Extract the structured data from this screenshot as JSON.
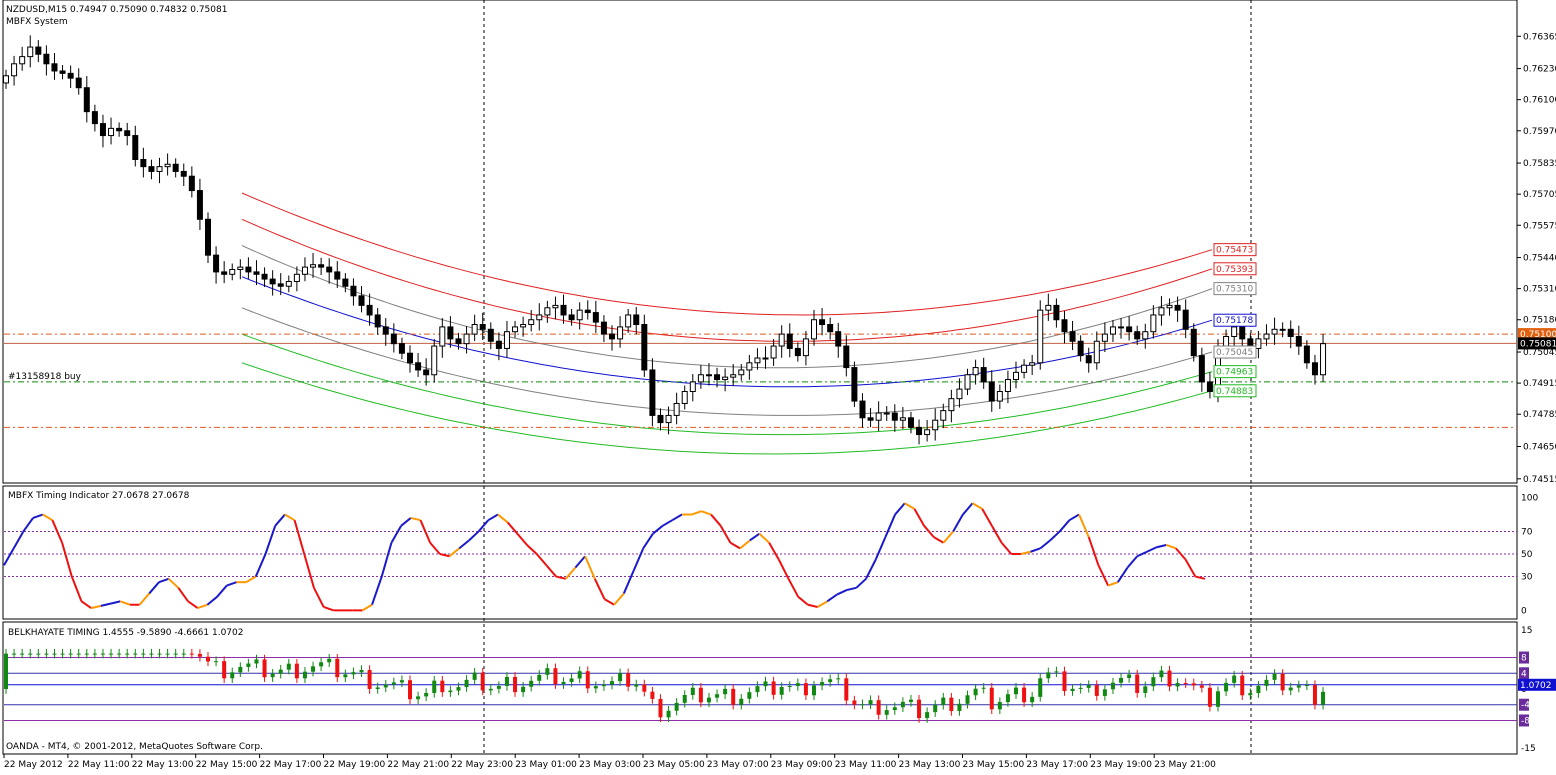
{
  "header": {
    "symbol_line": "NZDUSD,M15  0.74947 0.75090 0.74832 0.75081",
    "indicator_name": "MBFX System"
  },
  "trade_label": "#13158918 buy",
  "footer": "OANDA - MT4, © 2001-2012, MetaQuotes Software Corp.",
  "colors": {
    "bull_fill": "#ffffff",
    "bear_fill": "#000000",
    "band_red": "#e02020",
    "band_gray": "#808080",
    "band_blue": "#1010d0",
    "band_green": "#22bb22",
    "timing_up": "#1a1acc",
    "timing_down": "#ee1111",
    "timing_turn": "#ff9900",
    "hist_pos": "#118811",
    "hist_neg": "#ee1111",
    "level_lines": "#8a2fa8"
  },
  "chart_data": [
    {
      "type": "candlestick",
      "title": "NZDUSD,M15",
      "price_axis_ticks": [
        "0.76365",
        "0.76230",
        "0.76100",
        "0.75970",
        "0.75835",
        "0.75705",
        "0.75575",
        "0.75440",
        "0.75310",
        "0.75180",
        "0.75045",
        "0.74915",
        "0.74785",
        "0.74650",
        "0.74515"
      ],
      "ylim": [
        0.7451,
        0.765
      ],
      "close_series": [
        0.762,
        0.7625,
        0.7628,
        0.7632,
        0.7629,
        0.7625,
        0.7622,
        0.7621,
        0.7619,
        0.7615,
        0.7605,
        0.76,
        0.7595,
        0.7598,
        0.7597,
        0.7595,
        0.7585,
        0.7582,
        0.758,
        0.7582,
        0.7583,
        0.758,
        0.7578,
        0.7572,
        0.756,
        0.7545,
        0.7538,
        0.7537,
        0.7539,
        0.754,
        0.7538,
        0.7537,
        0.7535,
        0.7533,
        0.7532,
        0.7534,
        0.7537,
        0.754,
        0.7541,
        0.754,
        0.7538,
        0.7535,
        0.7532,
        0.7528,
        0.7524,
        0.752,
        0.7515,
        0.7512,
        0.7508,
        0.7504,
        0.75,
        0.7497,
        0.7495,
        0.7507,
        0.7515,
        0.751,
        0.7508,
        0.7512,
        0.7516,
        0.7514,
        0.7509,
        0.7506,
        0.7513,
        0.7515,
        0.7516,
        0.7518,
        0.752,
        0.7523,
        0.7524,
        0.752,
        0.7518,
        0.7522,
        0.7521,
        0.7517,
        0.7512,
        0.751,
        0.7515,
        0.752,
        0.7516,
        0.7497,
        0.7478,
        0.7475,
        0.7478,
        0.7483,
        0.7488,
        0.7492,
        0.7495,
        0.7495,
        0.7493,
        0.7494,
        0.7495,
        0.7497,
        0.75,
        0.7502,
        0.7502,
        0.7507,
        0.7512,
        0.7506,
        0.7503,
        0.751,
        0.7518,
        0.7516,
        0.7513,
        0.7507,
        0.7498,
        0.7484,
        0.7477,
        0.7476,
        0.7479,
        0.7479,
        0.7476,
        0.7477,
        0.7473,
        0.747,
        0.7472,
        0.7476,
        0.748,
        0.7485,
        0.7489,
        0.7495,
        0.7498,
        0.7492,
        0.7484,
        0.7488,
        0.7493,
        0.7496,
        0.7499,
        0.75,
        0.7522,
        0.7524,
        0.7518,
        0.7513,
        0.7509,
        0.7503,
        0.75,
        0.7509,
        0.7512,
        0.7515,
        0.7515,
        0.7513,
        0.751,
        0.7513,
        0.752,
        0.7523,
        0.7524,
        0.7522,
        0.7514,
        0.7503,
        0.7492,
        0.7488,
        0.7505,
        0.7511,
        0.7515,
        0.751,
        0.7506,
        0.751,
        0.7512,
        0.7514,
        0.7514,
        0.7511,
        0.7507,
        0.75,
        0.7495,
        0.7508
      ]
    },
    {
      "type": "line",
      "title": "MBFX Timing Indicator 27.0678 27.0678",
      "y_ticks": [
        "100",
        "70",
        "50",
        "30",
        "0"
      ],
      "levels": [
        70,
        50,
        30
      ],
      "ylim": [
        -5,
        105
      ],
      "values": [
        40,
        55,
        70,
        82,
        85,
        80,
        60,
        30,
        8,
        2,
        4,
        6,
        8,
        5,
        5,
        15,
        25,
        28,
        20,
        8,
        2,
        5,
        12,
        22,
        25,
        25,
        30,
        50,
        75,
        85,
        80,
        50,
        20,
        3,
        0,
        0,
        0,
        0,
        5,
        30,
        60,
        75,
        82,
        80,
        60,
        50,
        48,
        55,
        62,
        70,
        80,
        85,
        78,
        68,
        58,
        50,
        40,
        30,
        28,
        38,
        48,
        28,
        10,
        5,
        15,
        35,
        55,
        68,
        75,
        80,
        85,
        85,
        88,
        85,
        75,
        60,
        55,
        62,
        68,
        60,
        45,
        28,
        12,
        5,
        3,
        8,
        14,
        18,
        20,
        28,
        45,
        65,
        85,
        95,
        90,
        75,
        65,
        60,
        70,
        85,
        95,
        90,
        75,
        60,
        50,
        50,
        52,
        55,
        62,
        70,
        80,
        85,
        65,
        40,
        22,
        25,
        38,
        48,
        52,
        56,
        58,
        55,
        45,
        30,
        28
      ]
    },
    {
      "type": "bar",
      "title": "BELKHAYATE TIMING  1.4555 -9.5890 -4.6661 1.0702",
      "y_ticks": [
        "15",
        "8",
        "4",
        "0",
        "-4",
        "-8",
        "-15"
      ],
      "levels": [
        8,
        4,
        -4,
        -8
      ],
      "level_labels": [
        "8",
        "4",
        "-4",
        "-8"
      ],
      "current_value": "1.0702",
      "ylim": [
        -15,
        15
      ]
    }
  ],
  "time_axis_labels": [
    "22 May 2012",
    "22 May 11:00",
    "22 May 13:00",
    "22 May 15:00",
    "22 May 17:00",
    "22 May 19:00",
    "22 May 21:00",
    "22 May 23:00",
    "23 May 01:00",
    "23 May 03:00",
    "23 May 05:00",
    "23 May 07:00",
    "23 May 09:00",
    "23 May 11:00",
    "23 May 13:00",
    "23 May 15:00",
    "23 May 17:00",
    "23 May 19:00",
    "23 May 21:00"
  ],
  "price_tags": [
    {
      "label": "0.75473",
      "kind": "red"
    },
    {
      "label": "0.75393",
      "kind": "red"
    },
    {
      "label": "0.75310",
      "kind": "gray"
    },
    {
      "label": "0.75178",
      "kind": "blue"
    },
    {
      "label": "0.75100",
      "kind": "orange"
    },
    {
      "label": "0.75081",
      "kind": "black"
    },
    {
      "label": "0.75045",
      "kind": "gray"
    },
    {
      "label": "0.74963",
      "kind": "green"
    },
    {
      "label": "0.74883",
      "kind": "green"
    }
  ]
}
